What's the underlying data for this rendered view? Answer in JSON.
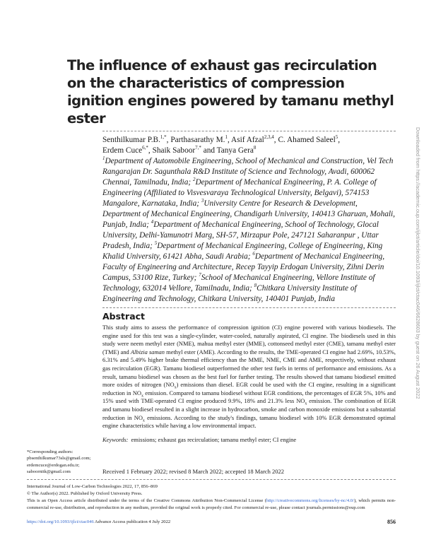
{
  "title": "The influence of exhaust gas recirculation on the characteristics of compression ignition engines powered by tamanu methyl ester",
  "authors": [
    {
      "name": "Senthilkumar P.B.",
      "sup": "1,*"
    },
    {
      "name": "Parthasarathy M.",
      "sup": "1"
    },
    {
      "name": "Asif Afzal",
      "sup": "2,3,4"
    },
    {
      "name": "C. Ahamed Saleel",
      "sup": "5"
    },
    {
      "name": "Erdem Cuce",
      "sup": "6,*"
    },
    {
      "name": "Shaik Saboor",
      "sup": "7,*"
    },
    {
      "name": "Tanya Gera",
      "sup": "8"
    }
  ],
  "affiliations": [
    {
      "sup": "1",
      "text": "Department of Automobile Engineering, School of Mechanical and Construction, Vel Tech Rangarajan Dr. Sagunthala R&D Institute of Science and Technology, Avadi, 600062 Chennai, Tamilnadu, India;"
    },
    {
      "sup": "2",
      "text": "Department of Mechanical Engineering, P. A. College of Engineering (Affiliated to Visvesvaraya Technological University, Belgavi), 574153 Mangalore, Karnataka, India;"
    },
    {
      "sup": "3",
      "text": "University Centre for Research & Development, Department of Mechanical Engineering, Chandigarh University, 140413 Gharuan, Mohali, Punjab, India;"
    },
    {
      "sup": "4",
      "text": "Department of Mechanical Engineering, School of Technology, Glocal University, Delhi-Yamunotri Marg, SH-57, Mirzapur Pole, 247121 Saharanpur , Uttar Pradesh, India;"
    },
    {
      "sup": "5",
      "text": "Department of Mechanical Engineering, College of Engineering, King Khalid University, 61421 Abha, Saudi Arabia;"
    },
    {
      "sup": "6",
      "text": "Department of Mechanical Engineering, Faculty of Engineering and Architecture, Recep Tayyip Erdogan University, Zihni Derin Campus, 53100 Rize, Turkey;"
    },
    {
      "sup": "7",
      "text": "School of Mechanical Engineering, Vellore Institute of Technology, 632014 Vellore, Tamilnadu, India;"
    },
    {
      "sup": "8",
      "text": "Chitkara University Institute of Engineering and Technology, Chitkara University, 140401 Punjab, India"
    }
  ],
  "abstract": {
    "heading": "Abstract",
    "p1": "This study aims to assess the performance of compression ignition (CI) engine powered with various biodiesels. The engine used for this test was a single-cylinder, water-cooled, naturally aspirated, CI engine. The biodiesels used in this study were neem methyl ester (NME), mahua methyl ester (MME), cottonseed methyl ester (CME), tamanu methyl ester (TME) and ",
    "p1_italic": "Albizia saman",
    "p2": " methyl ester (AME). According to the results, the TME-operated CI engine had 2.69%, 10.53%, 6.31% and 5.49% higher brake thermal efficiency than the MME, NME, CME and AME, respectively, without exhaust gas recirculation (EGR). Tamanu biodiesel outperformed the other test fuels in terms of performance and emissions. As a result, tamanu biodiesel was chosen as the best fuel for further testing. The results showed that tamanu biodiesel emitted more oxides of nitrogen (NO",
    "p3": ") emissions than diesel. EGR could be used with the CI engine, resulting in a significant reduction in NO",
    "p4": " emission. Compared to tamanu biodiesel without EGR conditions, the percentages of EGR 5%, 10% and 15% used with TME-operated CI engine produced 9.9%, 18% and 21.3% less NO",
    "p5": " emission. The combination of EGR and tamanu biodiesel resulted in a slight increase in hydrocarbon, smoke and carbon monoxide emissions but a substantial reduction in NO",
    "p6": " emissions. According to the study's findings, tamanu biodiesel with 10% EGR demonstrated optimal engine characteristics while having a low environmental impact.",
    "sub": "x"
  },
  "keywords": {
    "label": "Keywords:",
    "text": "emissions; exhaust gas recirculation; tamanu methyl ester; CI engine"
  },
  "corresponding": {
    "label": "*Corresponding authors:",
    "emails": [
      "pbsenthilkumar73sls@gmail.com;",
      "erdemcuce@erdogan.edu.tr;",
      "saboornitk@gmail.com"
    ]
  },
  "received": "Received 1 February 2022; revised 8 March 2022; accepted 18 March 2022",
  "footer": {
    "journal": "International Journal of Low-Carbon Technologies 2022, 17, 856–869",
    "copyright": "© The Author(s) 2022. Published by Oxford University Press.",
    "license_pre": "This is an Open Access article distributed under the terms of the Creative Commons Attribution Non-Commercial License (",
    "license_link": "http://creativecommons.org/licenses/by-nc/4.0/",
    "license_post": "), which permits non-commercial re-use, distribution, and reproduction in any medium, provided the original work is properly cited. For commercial re-use, please contact journals.permissions@oup.com",
    "doi": "https://doi.org/10.1093/ijlct/ctac046",
    "advance": " Advance Access publication 4 July 2022",
    "page": "856"
  },
  "sidebar": "Downloaded from https://academic.oup.com/ijlct/article/doi/10.1093/ijlct/ctac046/6628603 by guest on 26 August 2022"
}
